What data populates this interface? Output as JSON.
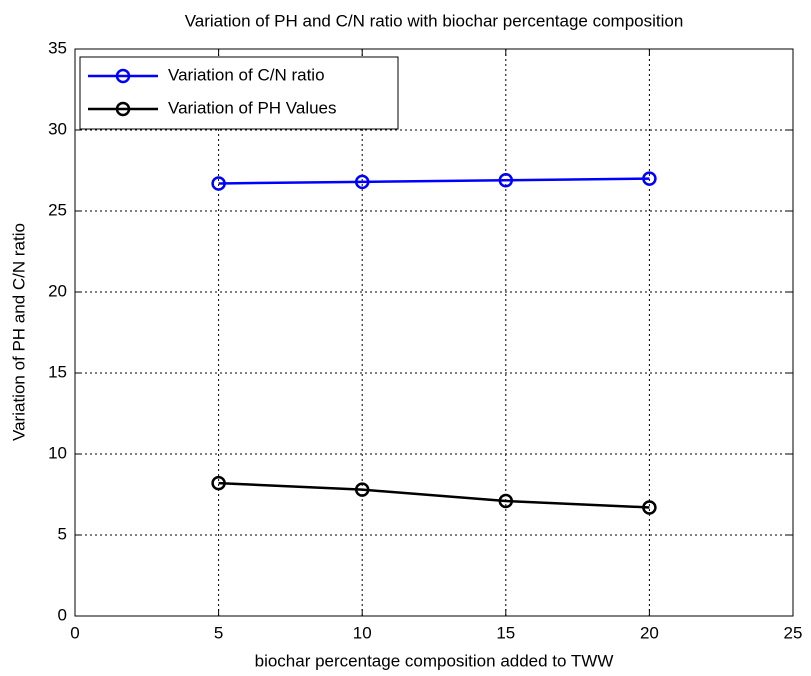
{
  "chart_data": {
    "type": "line",
    "title": "Variation of PH and C/N ratio with biochar percentage composition",
    "xlabel": "biochar percentage composition added to TWW",
    "ylabel": "Variation of PH and C/N ratio",
    "x": [
      5,
      10,
      15,
      20
    ],
    "series": [
      {
        "name": "Variation of C/N ratio",
        "color": "#0000ff",
        "values": [
          26.7,
          26.8,
          26.9,
          27.0
        ]
      },
      {
        "name": "Variation of PH Values",
        "color": "#000000",
        "values": [
          8.2,
          7.8,
          7.1,
          6.7
        ]
      }
    ],
    "xlim": [
      0,
      25
    ],
    "xticks": [
      0,
      5,
      10,
      15,
      20,
      25
    ],
    "ylim": [
      0,
      35
    ],
    "yticks": [
      0,
      5,
      10,
      15,
      20,
      25,
      30,
      35
    ],
    "grid": true,
    "legend": "northwest"
  }
}
